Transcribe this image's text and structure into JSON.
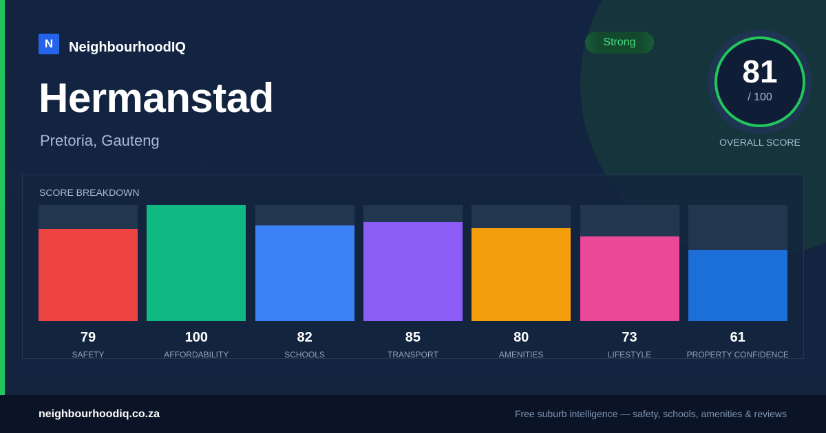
{
  "brand": {
    "logo_letter": "N",
    "name": "NeighbourhoodIQ"
  },
  "suburb": {
    "name": "Hermanstad",
    "location": "Pretoria, Gauteng"
  },
  "rating_badge": "Strong",
  "overall": {
    "score": "81",
    "max_label": "/ 100",
    "label": "OVERALL SCORE"
  },
  "breakdown": {
    "title": "SCORE BREAKDOWN",
    "max": 100,
    "items": [
      {
        "label": "SAFETY",
        "value": 79,
        "color": "#ef4444"
      },
      {
        "label": "AFFORDABILITY",
        "value": 100,
        "color": "#10b981"
      },
      {
        "label": "SCHOOLS",
        "value": 82,
        "color": "#3b82f6"
      },
      {
        "label": "TRANSPORT",
        "value": 85,
        "color": "#8b5cf6"
      },
      {
        "label": "AMENITIES",
        "value": 80,
        "color": "#f59e0b"
      },
      {
        "label": "LIFESTYLE",
        "value": 73,
        "color": "#ec4899"
      },
      {
        "label": "PROPERTY CONFIDENCE",
        "value": 61,
        "color": "#1d6fd8"
      }
    ]
  },
  "footer": {
    "url": "neighbourhoodiq.co.za",
    "tagline": "Free suburb intelligence — safety, schools, amenities & reviews"
  },
  "colors": {
    "accent": "#22c55e",
    "background": "#132442"
  }
}
